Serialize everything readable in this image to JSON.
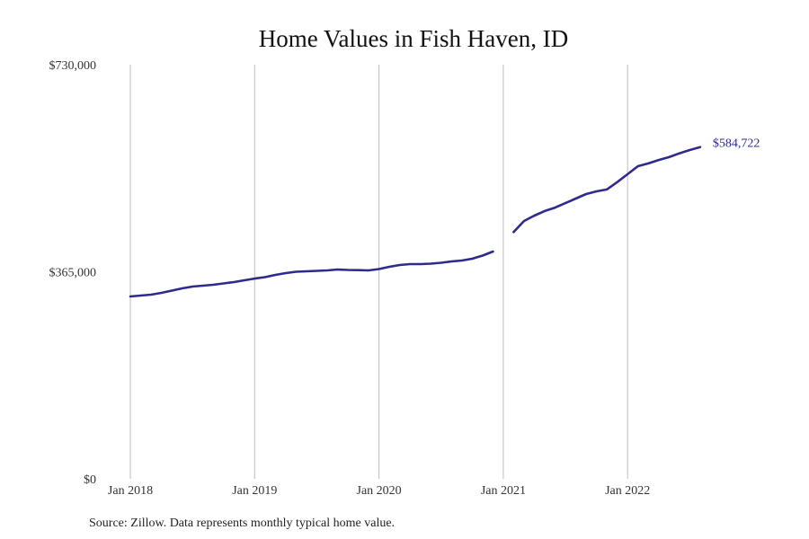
{
  "chart_data": {
    "type": "line",
    "title": "Home Values in Fish Haven, ID",
    "xlabel": "",
    "ylabel": "",
    "ylim": [
      0,
      730000
    ],
    "y_ticks": [
      {
        "value": 0,
        "label": "$0"
      },
      {
        "value": 365000,
        "label": "$365,000"
      },
      {
        "value": 730000,
        "label": "$730,000"
      }
    ],
    "x_ticks": [
      {
        "month": "2018-01",
        "label": "Jan 2018"
      },
      {
        "month": "2019-01",
        "label": "Jan 2019"
      },
      {
        "month": "2020-01",
        "label": "Jan 2020"
      },
      {
        "month": "2021-01",
        "label": "Jan 2021"
      },
      {
        "month": "2022-01",
        "label": "Jan 2022"
      }
    ],
    "grid": "vertical at x ticks",
    "series": [
      {
        "name": "Typical home value",
        "color": "#2e2a8e",
        "end_label": "$584,722",
        "points": [
          [
            "2018-01",
            321500
          ],
          [
            "2018-02",
            323000
          ],
          [
            "2018-03",
            324600
          ],
          [
            "2018-04",
            327800
          ],
          [
            "2018-05",
            331700
          ],
          [
            "2018-06",
            335700
          ],
          [
            "2018-07",
            338900
          ],
          [
            "2018-08",
            340500
          ],
          [
            "2018-09",
            342000
          ],
          [
            "2018-10",
            344400
          ],
          [
            "2018-11",
            346800
          ],
          [
            "2018-12",
            350000
          ],
          [
            "2019-01",
            353000
          ],
          [
            "2019-02",
            355500
          ],
          [
            "2019-03",
            359500
          ],
          [
            "2019-04",
            362600
          ],
          [
            "2019-05",
            365000
          ],
          [
            "2019-06",
            365800
          ],
          [
            "2019-07",
            366600
          ],
          [
            "2019-08",
            367400
          ],
          [
            "2019-09",
            369000
          ],
          [
            "2019-10",
            368200
          ],
          [
            "2019-11",
            367800
          ],
          [
            "2019-12",
            367400
          ],
          [
            "2020-01",
            369700
          ],
          [
            "2020-02",
            373700
          ],
          [
            "2020-03",
            376900
          ],
          [
            "2020-04",
            378500
          ],
          [
            "2020-05",
            378500
          ],
          [
            "2020-06",
            379200
          ],
          [
            "2020-07",
            380800
          ],
          [
            "2020-08",
            383200
          ],
          [
            "2020-09",
            384800
          ],
          [
            "2020-10",
            388000
          ],
          [
            "2020-11",
            393500
          ],
          [
            "2020-12",
            400600
          ],
          [
            "2021-01",
            null
          ],
          [
            "2021-02",
            435000
          ],
          [
            "2021-03",
            454500
          ],
          [
            "2021-04",
            464000
          ],
          [
            "2021-05",
            472000
          ],
          [
            "2021-06",
            478000
          ],
          [
            "2021-07",
            486000
          ],
          [
            "2021-08",
            494000
          ],
          [
            "2021-09",
            502000
          ],
          [
            "2021-10",
            506700
          ],
          [
            "2021-11",
            510000
          ],
          [
            "2021-12",
            523000
          ],
          [
            "2022-01",
            537000
          ],
          [
            "2022-02",
            551000
          ],
          [
            "2022-03",
            556000
          ],
          [
            "2022-04",
            562000
          ],
          [
            "2022-05",
            567000
          ],
          [
            "2022-06",
            573700
          ],
          [
            "2022-07",
            579500
          ],
          [
            "2022-08",
            584722
          ]
        ]
      }
    ]
  },
  "source_note": "Source: Zillow. Data represents monthly typical home value."
}
